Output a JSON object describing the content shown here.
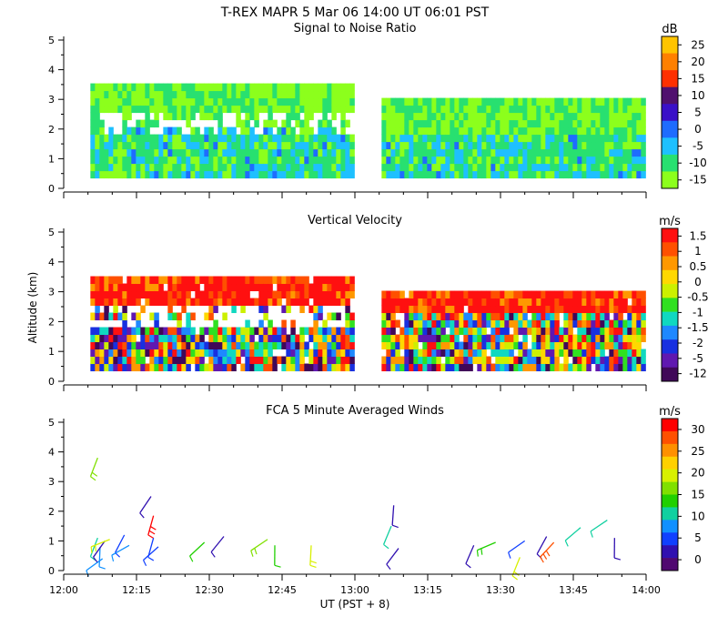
{
  "header": {
    "line1": "T-REX   MAPR   5 Mar 06   14:00 UT   06:01   PST"
  },
  "shared_axes": {
    "ylabel": "Altitude (km)",
    "xlabel": "UT  (PST + 8)",
    "x_ticks": [
      "12:00",
      "12:15",
      "12:30",
      "12:45",
      "13:00",
      "13:15",
      "13:30",
      "13:45",
      "14:00"
    ],
    "x_range_minutes": [
      0,
      120
    ],
    "y_ticks": [
      "0",
      "1",
      "2",
      "3",
      "4",
      "5"
    ],
    "ylim": [
      0,
      5
    ]
  },
  "chart_data": [
    {
      "type": "heatmap",
      "title": "Signal to Noise Ratio",
      "colorbar_unit": "dB",
      "colorbar_ticks": [
        "25",
        "20",
        "15",
        "10",
        "5",
        "0",
        "-5",
        "-10",
        "-15"
      ],
      "colorbar_colors": [
        "#ffc400",
        "#ff8000",
        "#ff3000",
        "#50106e",
        "#3a10c8",
        "#1e6cff",
        "#1ec0ff",
        "#28e070",
        "#8cff1c"
      ],
      "blocks": [
        {
          "x_start_min": 5.5,
          "x_end_min": 59.5,
          "alt_bottom_km": 0.35,
          "alt_top_km": 3.6
        },
        {
          "x_start_min": 65.5,
          "x_end_min": 119.5,
          "alt_bottom_km": 0.35,
          "alt_top_km": 3.2
        }
      ]
    },
    {
      "type": "heatmap",
      "title": "Vertical Velocity",
      "colorbar_unit": "m/s",
      "colorbar_ticks": [
        "1.5",
        "1",
        "0.5",
        "0",
        "-0.5",
        "-1",
        "-1.5",
        "-2",
        "-5",
        "-12"
      ],
      "colorbar_colors": [
        "#ff1010",
        "#ff5000",
        "#ff9800",
        "#ffd800",
        "#ccf000",
        "#30e020",
        "#10d8c0",
        "#1e88ff",
        "#1830e0",
        "#6018b0",
        "#400858"
      ],
      "blocks": [
        {
          "x_start_min": 5.5,
          "x_end_min": 59.5,
          "alt_bottom_km": 0.35,
          "alt_top_km": 3.6
        },
        {
          "x_start_min": 65.5,
          "x_end_min": 119.5,
          "alt_bottom_km": 0.35,
          "alt_top_km": 3.2
        }
      ]
    },
    {
      "type": "scatter",
      "title": "FCA 5 Minute Averaged Winds",
      "colorbar_unit": "m/s",
      "colorbar_ticks": [
        "30",
        "25",
        "20",
        "15",
        "10",
        "5",
        "0"
      ],
      "colorbar_colors": [
        "#ff0000",
        "#ff5000",
        "#ff9000",
        "#ffd000",
        "#d8f000",
        "#80e000",
        "#20d000",
        "#10d0a0",
        "#1090ff",
        "#1040ff",
        "#3010b0",
        "#500870"
      ],
      "barbs": [
        {
          "t": 7.0,
          "alt": 3.8,
          "speed": 17
        },
        {
          "t": 7.0,
          "alt": 1.1,
          "speed": 12
        },
        {
          "t": 7.5,
          "alt": 0.8,
          "speed": 9
        },
        {
          "t": 8.0,
          "alt": 0.4,
          "speed": 8
        },
        {
          "t": 8.5,
          "alt": 1.0,
          "speed": 2
        },
        {
          "t": 9.5,
          "alt": 1.05,
          "speed": 18
        },
        {
          "t": 12.5,
          "alt": 1.2,
          "speed": 5
        },
        {
          "t": 13.5,
          "alt": 0.85,
          "speed": 7
        },
        {
          "t": 18.0,
          "alt": 2.5,
          "speed": 4
        },
        {
          "t": 18.5,
          "alt": 1.85,
          "speed": 30
        },
        {
          "t": 18.5,
          "alt": 1.1,
          "speed": 5
        },
        {
          "t": 19.5,
          "alt": 0.8,
          "speed": 6
        },
        {
          "t": 29.0,
          "alt": 0.95,
          "speed": 13
        },
        {
          "t": 33.0,
          "alt": 1.15,
          "speed": 4
        },
        {
          "t": 42.0,
          "alt": 1.05,
          "speed": 16
        },
        {
          "t": 43.5,
          "alt": 0.85,
          "speed": 14
        },
        {
          "t": 51.0,
          "alt": 0.85,
          "speed": 19
        },
        {
          "t": 68.0,
          "alt": 2.2,
          "speed": 2
        },
        {
          "t": 67.5,
          "alt": 1.5,
          "speed": 12
        },
        {
          "t": 69.0,
          "alt": 0.75,
          "speed": 4
        },
        {
          "t": 84.5,
          "alt": 0.85,
          "speed": 4
        },
        {
          "t": 89.0,
          "alt": 0.95,
          "speed": 15
        },
        {
          "t": 94.0,
          "alt": 0.45,
          "speed": 19
        },
        {
          "t": 95.0,
          "alt": 1.0,
          "speed": 6
        },
        {
          "t": 99.5,
          "alt": 1.15,
          "speed": 3
        },
        {
          "t": 101.0,
          "alt": 0.95,
          "speed": 28
        },
        {
          "t": 106.5,
          "alt": 1.45,
          "speed": 12
        },
        {
          "t": 112.0,
          "alt": 1.7,
          "speed": 11
        },
        {
          "t": 113.5,
          "alt": 1.1,
          "speed": 4
        }
      ]
    }
  ]
}
